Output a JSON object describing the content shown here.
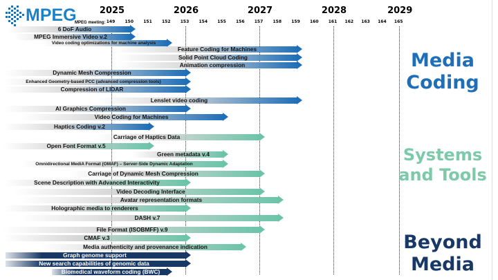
{
  "logo": {
    "text": "MPEG"
  },
  "timeline": {
    "meeting_label": "MPEG meeting:",
    "years": [
      "2025",
      "2026",
      "2027",
      "2028",
      "2029"
    ],
    "meetings": [
      "149",
      "150",
      "151",
      "152",
      "153",
      "154",
      "155",
      "156",
      "157",
      "158",
      "159",
      "160",
      "161",
      "162",
      "163",
      "164",
      "165"
    ]
  },
  "colors": {
    "media": "#1f6fb8",
    "systems": "#6cc4a8",
    "beyond": "#183866"
  },
  "sections": [
    {
      "id": "media",
      "title_line1": "Media",
      "title_line2": "Coding"
    },
    {
      "id": "systems",
      "title_line1": "Systems",
      "title_line2": "and Tools"
    },
    {
      "id": "beyond",
      "title_line1": "Beyond",
      "title_line2": "Media"
    }
  ],
  "items": [
    {
      "label": "6 DoF Audio",
      "section": "media",
      "end_meeting": 150
    },
    {
      "label": "MPEG Immersive Video v.2",
      "section": "media",
      "end_meeting": 150
    },
    {
      "label": "Video coding optimizations for machine analysis",
      "section": "media",
      "end_meeting": 152
    },
    {
      "label": "Feature Coding for Machines",
      "section": "media",
      "end_meeting": 159
    },
    {
      "label": "Solid Point Cloud Coding",
      "section": "media",
      "end_meeting": 159
    },
    {
      "label": "Animation compression",
      "section": "media",
      "end_meeting": 159
    },
    {
      "label": "Dynamic Mesh Compression",
      "section": "media",
      "end_meeting": 153
    },
    {
      "label": "Enhanced Geometry-based PCC (advanced compression tools)",
      "section": "media",
      "end_meeting": 153
    },
    {
      "label": "Compression of LIDAR",
      "section": "media",
      "end_meeting": 153
    },
    {
      "label": "Lenslet video coding",
      "section": "media",
      "end_meeting": 159
    },
    {
      "label": "AI Graphics Compression",
      "section": "media",
      "end_meeting": 153
    },
    {
      "label": "Video Coding for Machines",
      "section": "media",
      "end_meeting": 155
    },
    {
      "label": "Haptics  Coding v.2",
      "section": "media",
      "end_meeting": 151
    },
    {
      "label": "Carriage of Haptics Data",
      "section": "systems",
      "end_meeting": 157
    },
    {
      "label": "Open Font Format v.5",
      "section": "systems",
      "end_meeting": 151
    },
    {
      "label": "Green metadata v.4",
      "section": "systems",
      "end_meeting": 155
    },
    {
      "label": "Omnidirectional MediA Format (OMAF) – Server-Side Dynamic Adaptation",
      "section": "systems",
      "end_meeting": 155
    },
    {
      "label": "Carriage of Dynamic Mesh Compression",
      "section": "systems",
      "end_meeting": 157
    },
    {
      "label": "Scene Description with Advanced Interactivity",
      "section": "systems",
      "end_meeting": 153
    },
    {
      "label": "Video Decoding  Interface",
      "section": "systems",
      "end_meeting": 157
    },
    {
      "label": "Avatar representation formats",
      "section": "systems",
      "end_meeting": 158
    },
    {
      "label": "Holographic media to renderers",
      "section": "systems",
      "end_meeting": 153
    },
    {
      "label": "DASH v.7",
      "section": "systems",
      "end_meeting": 158
    },
    {
      "label": "File Format (ISOBMFF) v.9",
      "section": "systems",
      "end_meeting": 157
    },
    {
      "label": "CMAF v.3",
      "section": "systems",
      "end_meeting": 153
    },
    {
      "label": "Media authenticity and provenance indication",
      "section": "systems",
      "end_meeting": 156
    },
    {
      "label": "Graph genome support",
      "section": "beyond",
      "end_meeting": 153
    },
    {
      "label": "New search capabilities of genomic data",
      "section": "beyond",
      "end_meeting": 153
    },
    {
      "label": "Biomedical waveform coding (BWC)",
      "section": "beyond",
      "end_meeting": 152
    }
  ]
}
